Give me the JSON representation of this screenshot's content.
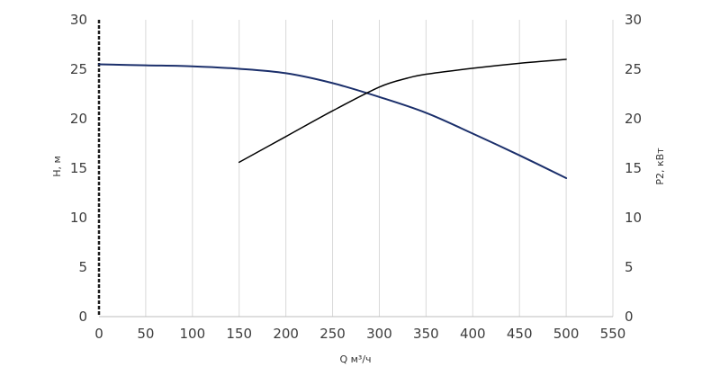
{
  "chart_data": {
    "type": "line",
    "xlabel": "Q м³/ч",
    "ylabel_left": "H, м",
    "ylabel_right": "P2, кВт",
    "xlim": [
      0,
      550
    ],
    "ylim_left": [
      0,
      30
    ],
    "ylim_right": [
      0,
      30
    ],
    "x_ticks": [
      0,
      50,
      100,
      150,
      200,
      250,
      300,
      350,
      400,
      450,
      500,
      550
    ],
    "y_ticks_left": [
      0,
      5,
      10,
      15,
      20,
      25,
      30
    ],
    "y_ticks_right": [
      0,
      5,
      10,
      15,
      20,
      25,
      30
    ],
    "grid": {
      "vertical": true,
      "horizontal": false
    },
    "series": [
      {
        "axis": "left",
        "color": "#1b2f6b",
        "x": [
          0,
          50,
          100,
          150,
          200,
          250,
          300,
          350,
          400,
          450,
          500
        ],
        "y": [
          25.5,
          25.4,
          25.3,
          25.05,
          24.6,
          23.6,
          22.2,
          20.6,
          18.5,
          16.3,
          14.0
        ]
      },
      {
        "axis": "right",
        "color": "#000000",
        "x": [
          150,
          200,
          250,
          300,
          330,
          350,
          400,
          450,
          500
        ],
        "y": [
          15.6,
          18.2,
          20.8,
          23.2,
          24.1,
          24.5,
          25.1,
          25.6,
          26.0
        ]
      }
    ]
  }
}
